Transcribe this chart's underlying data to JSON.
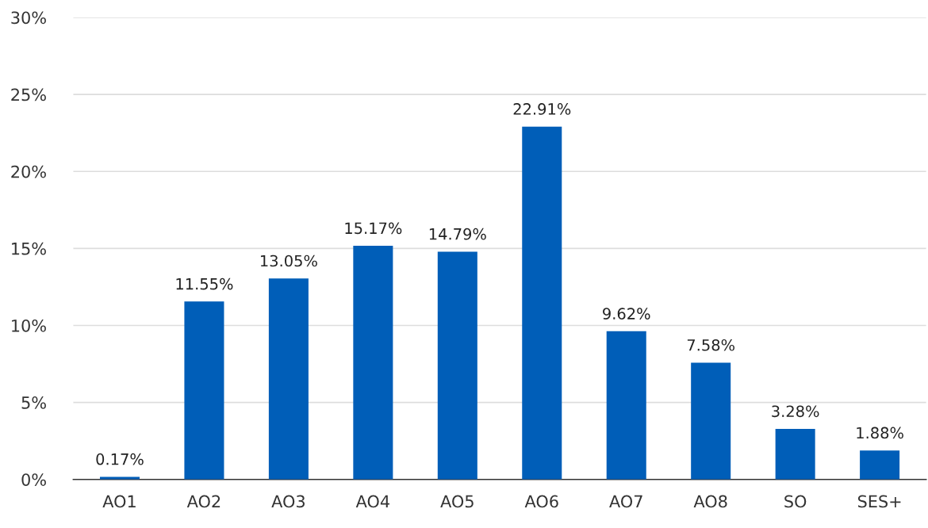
{
  "chart_data": {
    "type": "bar",
    "categories": [
      "AO1",
      "AO2",
      "AO3",
      "AO4",
      "AO5",
      "AO6",
      "AO7",
      "AO8",
      "SO",
      "SES+"
    ],
    "values": [
      0.17,
      11.55,
      13.05,
      15.17,
      14.79,
      22.91,
      9.62,
      7.58,
      3.28,
      1.88
    ],
    "value_labels": [
      "0.17%",
      "11.55%",
      "13.05%",
      "15.17%",
      "14.79%",
      "22.91%",
      "9.62%",
      "7.58%",
      "3.28%",
      "1.88%"
    ],
    "color": "#005eb8",
    "ylim": [
      0,
      30
    ],
    "yticks": [
      {
        "value": 0,
        "label": "0%"
      },
      {
        "value": 5,
        "label": "5%"
      },
      {
        "value": 10,
        "label": "10%"
      },
      {
        "value": 15,
        "label": "15%"
      },
      {
        "value": 20,
        "label": "20%"
      },
      {
        "value": 25,
        "label": "25%"
      },
      {
        "value": 30,
        "label": "30%"
      }
    ],
    "grid": "y",
    "legend": false
  }
}
